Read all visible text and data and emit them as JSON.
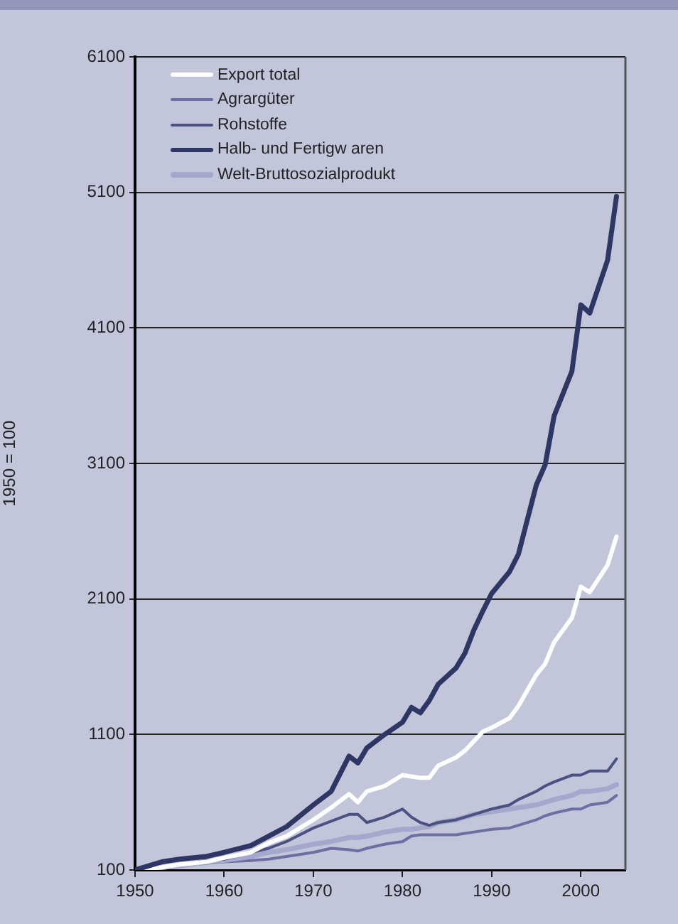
{
  "chart_data": {
    "type": "line",
    "ylabel": "1950 = 100",
    "x": [
      1950,
      1953,
      1955,
      1958,
      1960,
      1963,
      1965,
      1967,
      1970,
      1972,
      1974,
      1975,
      1976,
      1978,
      1980,
      1981,
      1982,
      1983,
      1984,
      1986,
      1987,
      1988,
      1989,
      1990,
      1992,
      1993,
      1995,
      1996,
      1997,
      1999,
      2000,
      2001,
      2003,
      2004
    ],
    "series": [
      {
        "name": "Export  total",
        "color": "#ffffff",
        "values": [
          100,
          120,
          140,
          160,
          190,
          230,
          300,
          350,
          470,
          560,
          660,
          600,
          680,
          720,
          800,
          790,
          780,
          780,
          870,
          930,
          980,
          1050,
          1120,
          1150,
          1220,
          1310,
          1540,
          1620,
          1780,
          1960,
          2190,
          2150,
          2350,
          2560
        ]
      },
      {
        "name": "Agrargüter",
        "color": "#6b70a0",
        "values": [
          100,
          110,
          130,
          150,
          160,
          170,
          180,
          200,
          230,
          260,
          250,
          240,
          260,
          290,
          310,
          350,
          360,
          360,
          360,
          360,
          370,
          380,
          390,
          400,
          410,
          430,
          470,
          500,
          520,
          550,
          550,
          580,
          600,
          650
        ]
      },
      {
        "name": "Rohstoffe",
        "color": "#4b5282",
        "values": [
          100,
          120,
          140,
          170,
          180,
          230,
          260,
          310,
          410,
          460,
          510,
          510,
          450,
          490,
          550,
          490,
          450,
          430,
          450,
          470,
          490,
          510,
          530,
          550,
          580,
          620,
          680,
          720,
          750,
          800,
          800,
          830,
          830,
          920
        ]
      },
      {
        "name": "Halb- und Fertigw aren",
        "color": "#2e3764",
        "values": [
          100,
          160,
          180,
          200,
          230,
          280,
          350,
          420,
          580,
          680,
          940,
          890,
          1000,
          1100,
          1190,
          1300,
          1260,
          1350,
          1470,
          1590,
          1700,
          1870,
          2010,
          2140,
          2300,
          2430,
          2940,
          3090,
          3450,
          3780,
          4270,
          4210,
          4600,
          5070
        ]
      },
      {
        "name": "Welt-Bruttosozialprodukt",
        "color": "#a5a8cc",
        "values": [
          100,
          120,
          130,
          160,
          170,
          200,
          230,
          250,
          290,
          310,
          340,
          340,
          350,
          380,
          400,
          400,
          410,
          420,
          450,
          470,
          490,
          510,
          520,
          530,
          550,
          560,
          580,
          600,
          620,
          650,
          680,
          680,
          700,
          730
        ]
      }
    ],
    "xlim": [
      1950,
      2005
    ],
    "xticks": [
      1950,
      1960,
      1970,
      1980,
      1990,
      2000
    ],
    "ylim": [
      100,
      6100
    ],
    "yticks": [
      100,
      1100,
      2100,
      3100,
      4100,
      5100,
      6100
    ],
    "grid": "y",
    "legend": "top left",
    "marker": "none",
    "line_style": "solid"
  }
}
